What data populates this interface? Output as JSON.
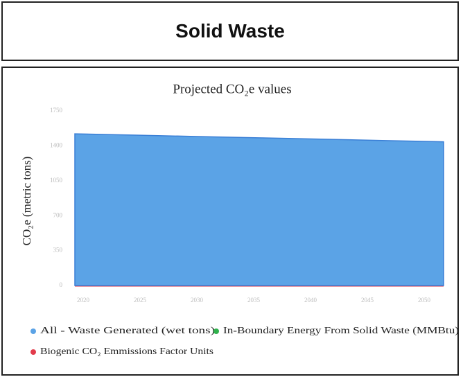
{
  "header": {
    "title": "Solid Waste"
  },
  "chart_data": {
    "type": "area",
    "title": "Projected CO₂e values",
    "y_label": "CO₂e (metric tons)",
    "categories": [
      "2020",
      "2025",
      "2030",
      "2035",
      "2040",
      "2045",
      "2050"
    ],
    "series": [
      {
        "name": "All - Waste Generated (wet tons)",
        "color": "#5ba3e6",
        "values": [
          1520,
          1507,
          1493,
          1480,
          1467,
          1453,
          1440
        ]
      },
      {
        "name": "In-Boundary Energy From Solid Waste (MMBtu)",
        "color": "#2fb14c",
        "values": [
          20,
          20,
          20,
          20,
          20,
          20,
          20
        ]
      },
      {
        "name": "Biogenic CO₂ Emmissions Factor Units",
        "color": "#e23b4b",
        "values": [
          0,
          0,
          0,
          0,
          0,
          0,
          0
        ]
      }
    ],
    "ylim": [
      0,
      1750
    ],
    "yticks": [
      0,
      350,
      700,
      1050,
      1400,
      1750
    ]
  }
}
